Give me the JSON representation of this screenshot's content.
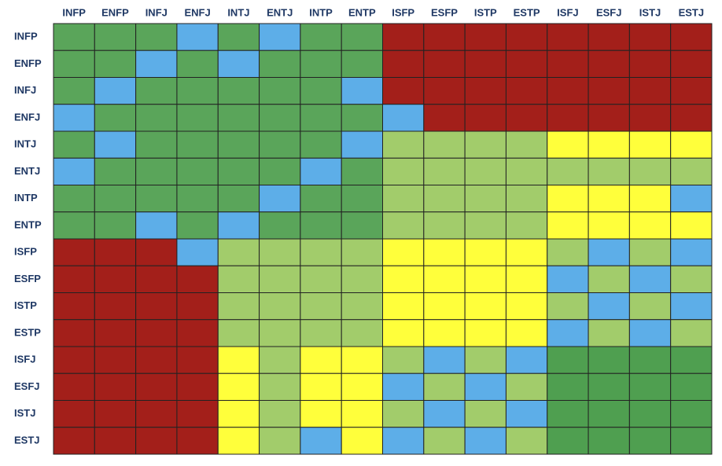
{
  "columns": [
    "INFP",
    "ENFP",
    "INFJ",
    "ENFJ",
    "INTJ",
    "ENTJ",
    "INTP",
    "ENTP",
    "ISFP",
    "ESFP",
    "ISTP",
    "ESTP",
    "ISFJ",
    "ESFJ",
    "ISTJ",
    "ESTJ"
  ],
  "rows": [
    {
      "label": "INFP",
      "cells": [
        "#5aa55a",
        "#5aa55a",
        "#5aa55a",
        "#5daee8",
        "#5aa55a",
        "#5daee8",
        "#5aa55a",
        "#5aa55a",
        "#a31f1a",
        "#a31f1a",
        "#a31f1a",
        "#a31f1a",
        "#a31f1a",
        "#a31f1a",
        "#a31f1a",
        "#a31f1a"
      ]
    },
    {
      "label": "ENFP",
      "cells": [
        "#5aa55a",
        "#5aa55a",
        "#5daee8",
        "#5aa55a",
        "#5daee8",
        "#5aa55a",
        "#5aa55a",
        "#5aa55a",
        "#a31f1a",
        "#a31f1a",
        "#a31f1a",
        "#a31f1a",
        "#a31f1a",
        "#a31f1a",
        "#a31f1a",
        "#a31f1a"
      ]
    },
    {
      "label": "INFJ",
      "cells": [
        "#5aa55a",
        "#5daee8",
        "#5aa55a",
        "#5aa55a",
        "#5aa55a",
        "#5aa55a",
        "#5aa55a",
        "#5daee8",
        "#a31f1a",
        "#a31f1a",
        "#a31f1a",
        "#a31f1a",
        "#a31f1a",
        "#a31f1a",
        "#a31f1a",
        "#a31f1a"
      ]
    },
    {
      "label": "ENFJ",
      "cells": [
        "#5daee8",
        "#5aa55a",
        "#5aa55a",
        "#5aa55a",
        "#5aa55a",
        "#5aa55a",
        "#5aa55a",
        "#5aa55a",
        "#5daee8",
        "#a31f1a",
        "#a31f1a",
        "#a31f1a",
        "#a31f1a",
        "#a31f1a",
        "#a31f1a",
        "#a31f1a"
      ]
    },
    {
      "label": "INTJ",
      "cells": [
        "#5aa55a",
        "#5daee8",
        "#5aa55a",
        "#5aa55a",
        "#5aa55a",
        "#5aa55a",
        "#5aa55a",
        "#5daee8",
        "#a2cc6b",
        "#a2cc6b",
        "#a2cc6b",
        "#a2cc6b",
        "#ffff3b",
        "#ffff3b",
        "#ffff3b",
        "#ffff3b"
      ]
    },
    {
      "label": "ENTJ",
      "cells": [
        "#5daee8",
        "#5aa55a",
        "#5aa55a",
        "#5aa55a",
        "#5aa55a",
        "#5aa55a",
        "#5daee8",
        "#5aa55a",
        "#a2cc6b",
        "#a2cc6b",
        "#a2cc6b",
        "#a2cc6b",
        "#a2cc6b",
        "#a2cc6b",
        "#a2cc6b",
        "#a2cc6b"
      ]
    },
    {
      "label": "INTP",
      "cells": [
        "#5aa55a",
        "#5aa55a",
        "#5aa55a",
        "#5aa55a",
        "#5aa55a",
        "#5daee8",
        "#5aa55a",
        "#5aa55a",
        "#a2cc6b",
        "#a2cc6b",
        "#a2cc6b",
        "#a2cc6b",
        "#ffff3b",
        "#ffff3b",
        "#ffff3b",
        "#5daee8"
      ]
    },
    {
      "label": "ENTP",
      "cells": [
        "#5aa55a",
        "#5aa55a",
        "#5daee8",
        "#5aa55a",
        "#5daee8",
        "#5aa55a",
        "#5aa55a",
        "#5aa55a",
        "#a2cc6b",
        "#a2cc6b",
        "#a2cc6b",
        "#a2cc6b",
        "#ffff3b",
        "#ffff3b",
        "#ffff3b",
        "#ffff3b"
      ]
    },
    {
      "label": "ISFP",
      "cells": [
        "#a31f1a",
        "#a31f1a",
        "#a31f1a",
        "#5daee8",
        "#a2cc6b",
        "#a2cc6b",
        "#a2cc6b",
        "#a2cc6b",
        "#ffff3b",
        "#ffff3b",
        "#ffff3b",
        "#ffff3b",
        "#a2cc6b",
        "#5daee8",
        "#a2cc6b",
        "#5daee8"
      ]
    },
    {
      "label": "ESFP",
      "cells": [
        "#a31f1a",
        "#a31f1a",
        "#a31f1a",
        "#a31f1a",
        "#a2cc6b",
        "#a2cc6b",
        "#a2cc6b",
        "#a2cc6b",
        "#ffff3b",
        "#ffff3b",
        "#ffff3b",
        "#ffff3b",
        "#5daee8",
        "#a2cc6b",
        "#5daee8",
        "#a2cc6b"
      ]
    },
    {
      "label": "ISTP",
      "cells": [
        "#a31f1a",
        "#a31f1a",
        "#a31f1a",
        "#a31f1a",
        "#a2cc6b",
        "#a2cc6b",
        "#a2cc6b",
        "#a2cc6b",
        "#ffff3b",
        "#ffff3b",
        "#ffff3b",
        "#ffff3b",
        "#a2cc6b",
        "#5daee8",
        "#a2cc6b",
        "#5daee8"
      ]
    },
    {
      "label": "ESTP",
      "cells": [
        "#a31f1a",
        "#a31f1a",
        "#a31f1a",
        "#a31f1a",
        "#a2cc6b",
        "#a2cc6b",
        "#a2cc6b",
        "#a2cc6b",
        "#ffff3b",
        "#ffff3b",
        "#ffff3b",
        "#ffff3b",
        "#5daee8",
        "#a2cc6b",
        "#5daee8",
        "#a2cc6b"
      ]
    },
    {
      "label": "ISFJ",
      "cells": [
        "#a31f1a",
        "#a31f1a",
        "#a31f1a",
        "#a31f1a",
        "#ffff3b",
        "#a2cc6b",
        "#ffff3b",
        "#ffff3b",
        "#a2cc6b",
        "#5daee8",
        "#a2cc6b",
        "#5daee8",
        "#4f9f50",
        "#4f9f50",
        "#4f9f50",
        "#4f9f50"
      ]
    },
    {
      "label": "ESFJ",
      "cells": [
        "#a31f1a",
        "#a31f1a",
        "#a31f1a",
        "#a31f1a",
        "#ffff3b",
        "#a2cc6b",
        "#ffff3b",
        "#ffff3b",
        "#5daee8",
        "#a2cc6b",
        "#5daee8",
        "#a2cc6b",
        "#4f9f50",
        "#4f9f50",
        "#4f9f50",
        "#4f9f50"
      ]
    },
    {
      "label": "ISTJ",
      "cells": [
        "#a31f1a",
        "#a31f1a",
        "#a31f1a",
        "#a31f1a",
        "#ffff3b",
        "#a2cc6b",
        "#ffff3b",
        "#ffff3b",
        "#a2cc6b",
        "#5daee8",
        "#a2cc6b",
        "#5daee8",
        "#4f9f50",
        "#4f9f50",
        "#4f9f50",
        "#4f9f50"
      ]
    },
    {
      "label": "ESTJ",
      "cells": [
        "#a31f1a",
        "#a31f1a",
        "#a31f1a",
        "#a31f1a",
        "#ffff3b",
        "#a2cc6b",
        "#5daee8",
        "#ffff3b",
        "#5daee8",
        "#a2cc6b",
        "#5daee8",
        "#a2cc6b",
        "#4f9f50",
        "#4f9f50",
        "#4f9f50",
        "#4f9f50"
      ]
    }
  ]
}
